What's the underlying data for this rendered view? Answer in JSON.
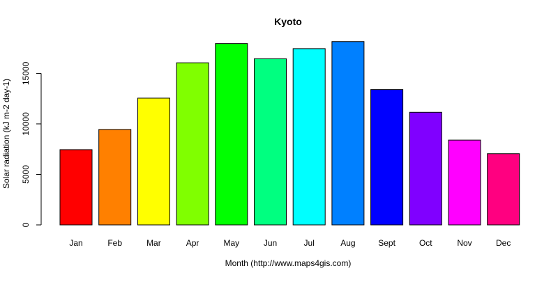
{
  "chart_data": {
    "type": "bar",
    "title": "Kyoto",
    "xlabel": "Month (http://www.maps4gis.com)",
    "ylabel": "Solar radiation (kJ m-2 day-1)",
    "categories": [
      "Jan",
      "Feb",
      "Mar",
      "Apr",
      "May",
      "Jun",
      "Jul",
      "Aug",
      "Sept",
      "Oct",
      "Nov",
      "Dec"
    ],
    "values": [
      7450,
      9450,
      12550,
      16050,
      17950,
      16450,
      17450,
      18150,
      13400,
      11150,
      8400,
      7050
    ],
    "colors": [
      "#FF0000",
      "#FF8000",
      "#FFFF00",
      "#80FF00",
      "#00FF00",
      "#00FF80",
      "#00FFFF",
      "#0080FF",
      "#0000FF",
      "#8000FF",
      "#FF00FF",
      "#FF0080"
    ],
    "yticks": [
      0,
      5000,
      10000,
      15000
    ],
    "ylim": [
      0,
      18200
    ],
    "grid": false,
    "legend": "none"
  }
}
